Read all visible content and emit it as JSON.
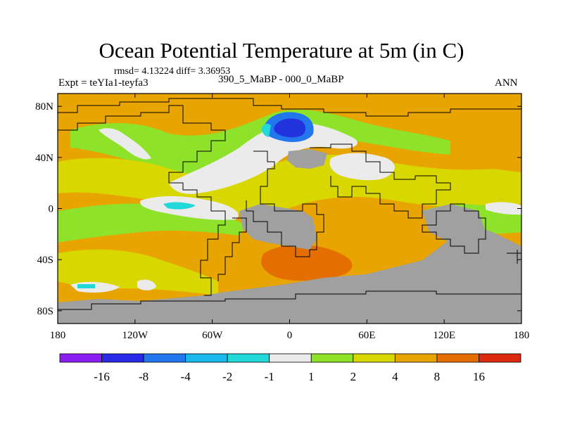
{
  "title": "Ocean Potential Temperature at 5m (in C)",
  "stats": "rmsd= 4.13224  diff= 3.36953",
  "left_label": "Expt = teYIa1-teyfa3",
  "center_label": "390_5_MaBP - 000_0_MaBP",
  "right_label": "ANN",
  "chart_data": {
    "type": "filled-contour-map",
    "variable": "Ocean Potential Temperature at 5m difference",
    "units": "C",
    "xlim": [
      -180,
      180
    ],
    "ylim": [
      -90,
      90
    ],
    "x_ticks": [
      {
        "value": -180,
        "label": "180"
      },
      {
        "value": -120,
        "label": "120W"
      },
      {
        "value": -60,
        "label": "60W"
      },
      {
        "value": 0,
        "label": "0"
      },
      {
        "value": 60,
        "label": "60E"
      },
      {
        "value": 120,
        "label": "120E"
      },
      {
        "value": 180,
        "label": "180"
      }
    ],
    "y_ticks": [
      {
        "value": 80,
        "label": "80N"
      },
      {
        "value": 40,
        "label": "40N"
      },
      {
        "value": 0,
        "label": "0"
      },
      {
        "value": -40,
        "label": "40S"
      },
      {
        "value": -80,
        "label": "80S"
      }
    ],
    "colorbar": {
      "levels": [
        "-16",
        "-8",
        "-4",
        "-2",
        "-1",
        "1",
        "2",
        "4",
        "8",
        "16"
      ],
      "colors": [
        "#8a1ef0",
        "#2a2ae6",
        "#2277ee",
        "#18b8ea",
        "#22d8d8",
        "#ebebeb",
        "#8ee22a",
        "#d8d800",
        "#e8a400",
        "#e56e00",
        "#dc2a10"
      ]
    },
    "missing_color": "#a0a0a0",
    "colors": {
      "blue_dark": "#2233dd",
      "blue_mid": "#2277ee",
      "cyan": "#22d8d8",
      "white": "#ebebeb",
      "green": "#8ee22a",
      "yellow": "#d8d800",
      "orange": "#e8a400",
      "dark_orange": "#e56e00",
      "grey": "#a0a0a0"
    }
  }
}
